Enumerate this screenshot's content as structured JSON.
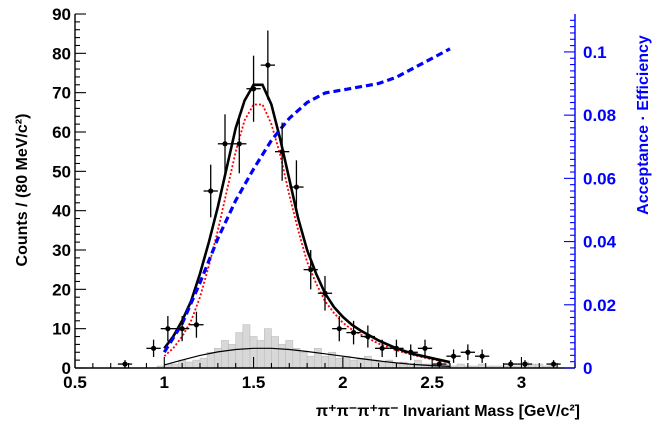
{
  "chart_data": {
    "type": "scatter",
    "xlabel": "π⁺π⁻π⁺π⁻ Invariant Mass [GeV/c²]",
    "ylabel": "Counts / (80 MeV/c²)",
    "y2label": "Acceptance · Efficiency",
    "xlim": [
      0.5,
      3.3
    ],
    "ylim": [
      0,
      90
    ],
    "y2lim": [
      0,
      0.112
    ],
    "x_ticks": [
      0.5,
      1,
      1.5,
      2,
      2.5,
      3
    ],
    "x_tick_labels": [
      "0.5",
      "1",
      "1.5",
      "2",
      "2.5",
      "3"
    ],
    "y_ticks": [
      0,
      10,
      20,
      30,
      40,
      50,
      60,
      70,
      80,
      90
    ],
    "y_tick_labels": [
      "0",
      "10",
      "20",
      "30",
      "40",
      "50",
      "60",
      "70",
      "80",
      "90"
    ],
    "y2_ticks": [
      0,
      0.02,
      0.04,
      0.06,
      0.08,
      0.1
    ],
    "y2_tick_labels": [
      "0",
      "0.02",
      "0.04",
      "0.06",
      "0.08",
      "0.1"
    ],
    "grid": false,
    "colors": {
      "data": "#000000",
      "total_fit": "#000000",
      "signal_fit": "#ff0000",
      "background_fit": "#000000",
      "background_hist_fill": "#d8d8d8",
      "background_hist_edge": "#bbbbbb",
      "acceptance_curve": "#0000ff",
      "right_axis": "#0000ff"
    },
    "data_points": {
      "x": [
        0.78,
        0.94,
        1.02,
        1.1,
        1.18,
        1.26,
        1.34,
        1.42,
        1.5,
        1.58,
        1.66,
        1.74,
        1.82,
        1.9,
        1.98,
        2.06,
        2.14,
        2.22,
        2.3,
        2.38,
        2.46,
        2.54,
        2.62,
        2.7,
        2.78,
        2.94,
        3.02,
        3.18
      ],
      "y": [
        1,
        5,
        10,
        10,
        11,
        45,
        57,
        57,
        71,
        77,
        55,
        46,
        25,
        19,
        10,
        9,
        8,
        5,
        5,
        4,
        5,
        1,
        3,
        4,
        3,
        1,
        1,
        1
      ],
      "err": [
        1.0,
        2.2,
        3.2,
        3.2,
        3.3,
        6.7,
        7.5,
        7.5,
        8.4,
        8.8,
        7.4,
        6.8,
        5.0,
        4.4,
        3.2,
        3.0,
        2.8,
        2.2,
        2.2,
        2.0,
        2.2,
        1.0,
        1.7,
        2.0,
        1.7,
        1.0,
        1.0,
        1.0
      ]
    },
    "background_histogram": {
      "bin_width": 0.04,
      "x_centers": [
        0.98,
        1.02,
        1.06,
        1.1,
        1.14,
        1.18,
        1.22,
        1.26,
        1.3,
        1.34,
        1.38,
        1.42,
        1.46,
        1.5,
        1.54,
        1.58,
        1.62,
        1.66,
        1.7,
        1.74,
        1.78,
        1.82,
        1.86,
        1.9,
        1.94,
        1.98,
        2.02,
        2.06,
        2.1,
        2.14,
        2.18,
        2.22,
        2.26,
        2.3,
        2.34,
        2.38,
        2.42,
        2.46,
        2.5,
        2.54,
        2.58,
        2.62,
        2.66,
        2.7,
        2.74,
        2.78,
        2.82,
        2.86,
        2.9,
        2.94,
        2.98,
        3.02,
        3.06,
        3.1,
        3.14,
        3.18
      ],
      "values": [
        0.5,
        1,
        1,
        2,
        1.5,
        2,
        2.5,
        4,
        5,
        7,
        6,
        9,
        11,
        8,
        7,
        10,
        8,
        6,
        7,
        5,
        4,
        3,
        5,
        3,
        4,
        2.5,
        3,
        2,
        2.5,
        3,
        2,
        1.5,
        2,
        1,
        1.5,
        1,
        2,
        1,
        1,
        0.5,
        1,
        0.5,
        1,
        0.5,
        0.5,
        1,
        0.5,
        0.5,
        0.5,
        0.5,
        0.5,
        1.5,
        1,
        1,
        0.5,
        1
      ]
    },
    "total_fit": {
      "x": [
        1.0,
        1.05,
        1.1,
        1.15,
        1.2,
        1.25,
        1.3,
        1.35,
        1.4,
        1.45,
        1.5,
        1.55,
        1.6,
        1.65,
        1.7,
        1.75,
        1.8,
        1.85,
        1.9,
        1.95,
        2.0,
        2.05,
        2.1,
        2.2,
        2.3,
        2.4,
        2.5,
        2.6
      ],
      "y": [
        5,
        8,
        12,
        17,
        24,
        32,
        41,
        51,
        61,
        68,
        72,
        72,
        67,
        58,
        48,
        38,
        30,
        24,
        19,
        15.5,
        13,
        11,
        9.5,
        7,
        5,
        3.5,
        2.5,
        1.5
      ]
    },
    "signal_fit": {
      "x": [
        1.0,
        1.05,
        1.1,
        1.15,
        1.2,
        1.25,
        1.3,
        1.35,
        1.4,
        1.45,
        1.5,
        1.55,
        1.6,
        1.65,
        1.7,
        1.75,
        1.8,
        1.85,
        1.9,
        1.95,
        2.0,
        2.05,
        2.1,
        2.2,
        2.3,
        2.4,
        2.5,
        2.6
      ],
      "y": [
        3,
        5,
        8,
        12,
        18,
        26,
        35,
        45,
        55,
        63,
        67,
        67,
        62,
        54,
        44,
        35,
        27,
        21.5,
        17,
        14,
        11.5,
        9.8,
        8.5,
        6.2,
        4.5,
        3.2,
        2.2,
        1.3
      ]
    },
    "background_fit": {
      "x": [
        1.0,
        1.1,
        1.2,
        1.3,
        1.4,
        1.5,
        1.6,
        1.7,
        1.8,
        1.9,
        2.0,
        2.1,
        2.2,
        2.3,
        2.4,
        2.5,
        2.6
      ],
      "y": [
        0.8,
        2.0,
        3.2,
        4.1,
        4.7,
        5.0,
        5.0,
        4.7,
        4.2,
        3.6,
        3.0,
        2.4,
        1.8,
        1.3,
        0.9,
        0.6,
        0.4
      ]
    },
    "acceptance_efficiency": {
      "x": [
        1.0,
        1.1,
        1.2,
        1.3,
        1.4,
        1.5,
        1.6,
        1.7,
        1.8,
        1.9,
        2.0,
        2.1,
        2.2,
        2.3,
        2.4,
        2.5,
        2.6
      ],
      "y": [
        0.005,
        0.014,
        0.027,
        0.041,
        0.053,
        0.063,
        0.072,
        0.079,
        0.084,
        0.087,
        0.088,
        0.089,
        0.09,
        0.092,
        0.095,
        0.098,
        0.101
      ]
    }
  }
}
